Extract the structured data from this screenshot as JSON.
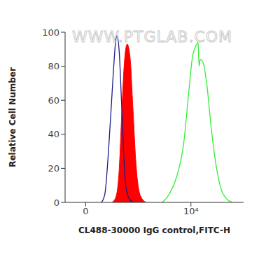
{
  "chart_data": {
    "type": "histogram",
    "watermark": "WWW.PTGLAB.COM",
    "x_label": "CL488-30000 IgG control,FITC-H",
    "y_label": "Relative Cell Number",
    "log": "x",
    "xlim": [
      -5,
      1000000
    ],
    "xticks": [
      {
        "value": 0,
        "label": "0"
      },
      {
        "value": 10000,
        "label": "10⁴"
      }
    ],
    "ylim": [
      0,
      100
    ],
    "yticks": [
      0,
      20,
      40,
      60,
      80,
      100
    ],
    "grid": false,
    "series": [
      {
        "color": "#ff0000",
        "type": "area",
        "x": [
          9,
          13,
          18,
          23,
          28,
          37,
          48,
          62,
          79,
          102,
          140,
          205
        ],
        "values": [
          0,
          3,
          20,
          55,
          80,
          93,
          85,
          55,
          25,
          8,
          2,
          0
        ]
      },
      {
        "color": "#1c1c8a",
        "type": "line",
        "x": [
          3,
          4.4,
          6.4,
          9.2,
          11.3,
          12.9,
          14.7,
          18,
          22,
          26.7,
          32.4,
          44.7,
          65.6
        ],
        "values": [
          0,
          5,
          30,
          65,
          85,
          95,
          98,
          88,
          60,
          30,
          10,
          2,
          0
        ]
      },
      {
        "color": "#33ee33",
        "type": "line",
        "x": [
          815,
          1530,
          2860,
          5340,
          8290,
          11340,
          15500,
          18700,
          20500,
          22600,
          29000,
          39700,
          57800,
          89800,
          139000,
          229000,
          377000
        ],
        "values": [
          0,
          5,
          15,
          35,
          65,
          85,
          92,
          94,
          80,
          84,
          82,
          70,
          45,
          22,
          8,
          2,
          0
        ]
      }
    ]
  }
}
